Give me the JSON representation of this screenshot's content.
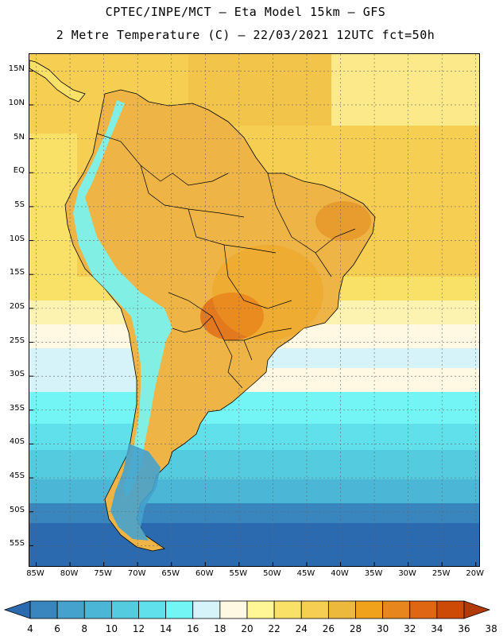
{
  "header": {
    "line1": "CPTEC/INPE/MCT –  Eta Model 15km – GFS",
    "line2": "2 Metre Temperature (C) – 22/03/2021 12UTC fct=50h"
  },
  "axes": {
    "lat_labels": [
      "15N",
      "10N",
      "5N",
      "EQ",
      "5S",
      "10S",
      "15S",
      "20S",
      "25S",
      "30S",
      "35S",
      "40S",
      "45S",
      "50S",
      "55S"
    ],
    "lat_values": [
      15,
      10,
      5,
      0,
      -5,
      -10,
      -15,
      -20,
      -25,
      -30,
      -35,
      -40,
      -45,
      -50,
      -55
    ],
    "lon_labels": [
      "85W",
      "80W",
      "75W",
      "70W",
      "65W",
      "60W",
      "55W",
      "50W",
      "45W",
      "40W",
      "35W",
      "30W",
      "25W",
      "20W"
    ],
    "lon_values": [
      -85,
      -80,
      -75,
      -70,
      -65,
      -60,
      -55,
      -50,
      -45,
      -40,
      -35,
      -30,
      -25,
      -20
    ],
    "lat_range": [
      -58,
      17.5
    ],
    "lon_range": [
      -86,
      -19.5
    ]
  },
  "colorbar": {
    "ticks": [
      "4",
      "6",
      "8",
      "10",
      "12",
      "14",
      "16",
      "18",
      "20",
      "22",
      "24",
      "26",
      "28",
      "30",
      "32",
      "34",
      "36",
      "38"
    ],
    "unit": "C",
    "colors": [
      "#2b6aae",
      "#3886bd",
      "#45a2cc",
      "#4cb6d6",
      "#55cbe0",
      "#5fe0ea",
      "#74f5f5",
      "#d6f3fa",
      "#fff8e3",
      "#fff796",
      "#f9e167",
      "#f6cf52",
      "#edb93c",
      "#f0a21d",
      "#e6861c",
      "#df6613",
      "#cc4a06",
      "#b33a0a"
    ]
  }
}
